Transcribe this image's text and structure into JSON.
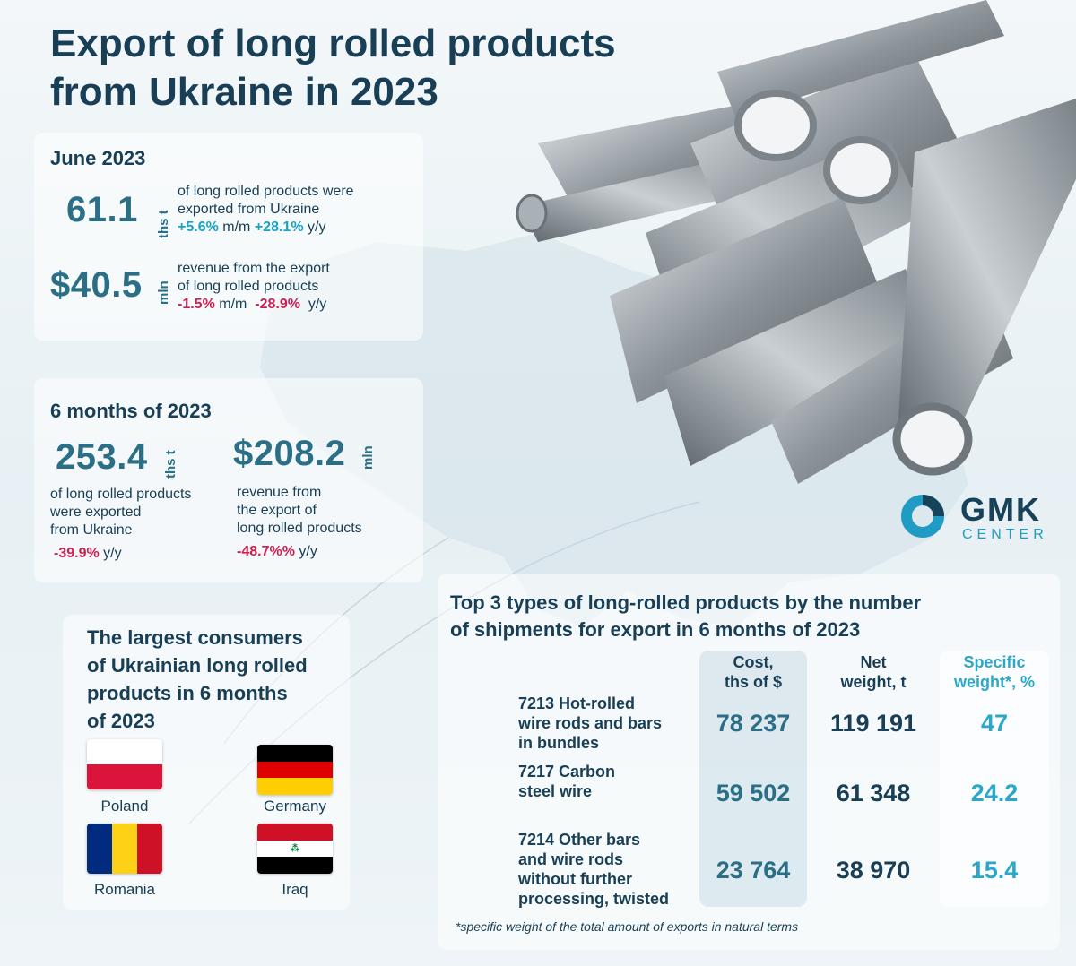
{
  "title_line1": "Export of long rolled products",
  "title_line2": "from Ukraine in 2023",
  "june": {
    "heading": "June 2023",
    "volume": {
      "value": "61.1",
      "unit": "ths t",
      "desc1": "of long rolled products were",
      "desc2": "exported from Ukraine",
      "mm": "+5.6%",
      "mm_label": "m/m",
      "yy": "+28.1%",
      "yy_label": "y/y"
    },
    "revenue": {
      "value": "$40.5",
      "unit": "mln",
      "desc1": "revenue from the export",
      "desc2": "of long rolled products",
      "mm": "-1.5%",
      "mm_label": "m/m",
      "yy": "-28.9%",
      "yy_label": "y/y"
    }
  },
  "six_months": {
    "heading": "6 months of 2023",
    "volume": {
      "value": "253.4",
      "unit": "ths t",
      "desc1": "of long rolled products",
      "desc2": "were exported",
      "desc3": "from Ukraine",
      "yy": "-39.9%",
      "yy_label": "y/y"
    },
    "revenue": {
      "value": "$208.2",
      "unit": "mln",
      "desc1": "revenue from",
      "desc2": "the export of",
      "desc3": "long rolled products",
      "yy": "-48.7%%",
      "yy_label": "y/y"
    }
  },
  "consumers": {
    "heading1": "The largest consumers",
    "heading2": "of Ukrainian long rolled",
    "heading3": "products in 6 months",
    "heading4": "of 2023",
    "countries": [
      "Poland",
      "Germany",
      "Romania",
      "Iraq"
    ]
  },
  "logo": {
    "name": "GMK",
    "sub": "CENTER",
    "accent": "#1f9bc4"
  },
  "top3": {
    "heading1": "Top 3 types of long-rolled products by the number",
    "heading2": "of shipments for export in 6 months of 2023",
    "columns": {
      "cost": [
        "Cost,",
        "ths of $"
      ],
      "net": [
        "Net",
        "weight, t"
      ],
      "spec": [
        "Specific",
        "weight*, %"
      ]
    },
    "rows": [
      {
        "label": [
          "7213 Hot-rolled",
          "wire rods and bars",
          "in bundles"
        ],
        "cost": "78 237",
        "net": "119 191",
        "spec": "47"
      },
      {
        "label": [
          "7217 Carbon",
          "steel wire"
        ],
        "cost": "59 502",
        "net": "61 348",
        "spec": "24.2"
      },
      {
        "label": [
          "7214 Other bars",
          "and wire rods",
          "without further",
          "processing, twisted"
        ],
        "cost": "23 764",
        "net": "38 970",
        "spec": "15.4"
      }
    ],
    "footnote": "*specific weight of the total amount of exports in natural terms"
  },
  "colors": {
    "dark": "#183f56",
    "teal": "#2b6f86",
    "positive": "#1aa1c6",
    "negative": "#cc1f4f"
  }
}
